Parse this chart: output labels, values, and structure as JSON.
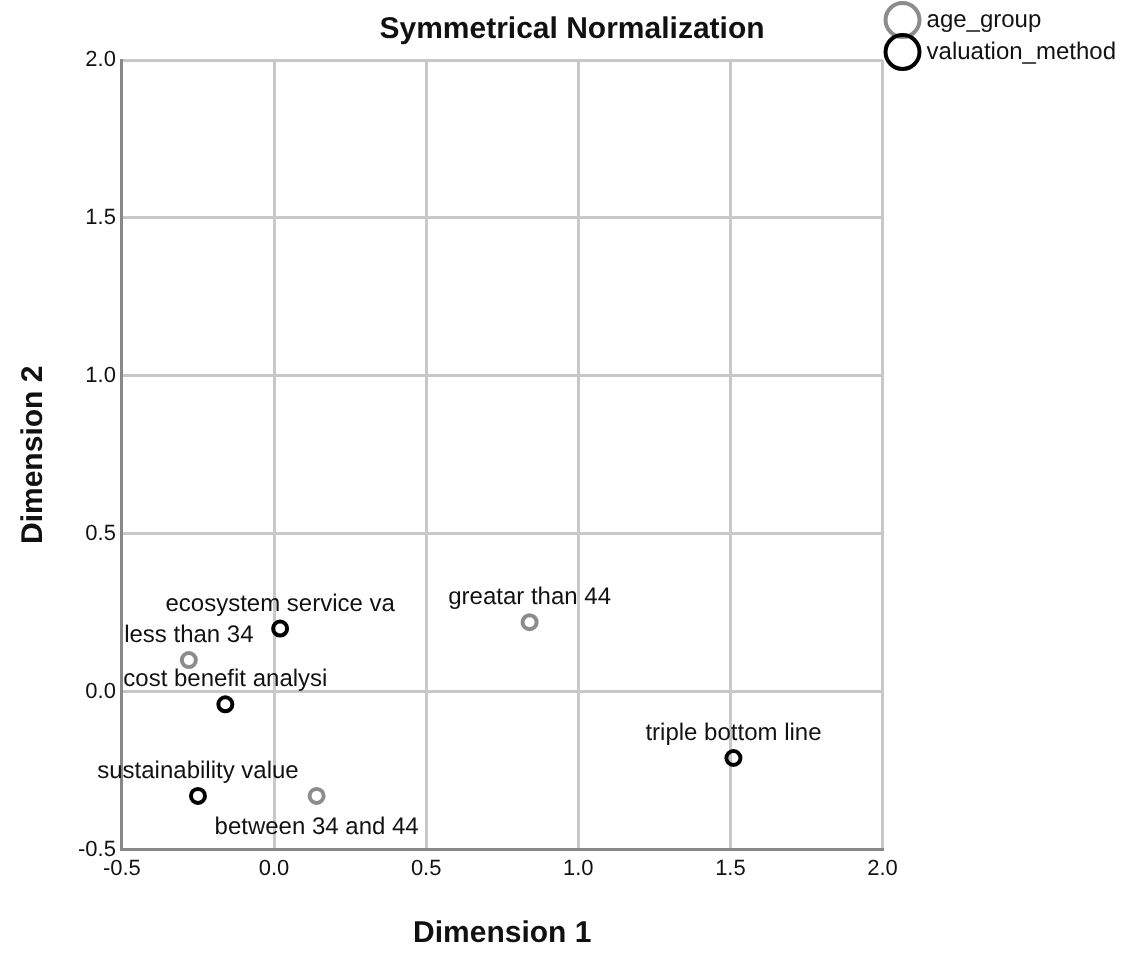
{
  "chart_data": {
    "type": "scatter",
    "title": "Symmetrical Normalization",
    "xlabel": "Dimension 1",
    "ylabel": "Dimension 2",
    "series": [
      {
        "name": "age_group",
        "color": "#8c8c8c",
        "x": [
          0.84,
          -0.28,
          0.14
        ],
        "values": [
          0.22,
          0.1,
          -0.33
        ]
      },
      {
        "name": "valuation_method",
        "color": "#000000",
        "x": [
          0.02,
          -0.16,
          1.51,
          -0.25
        ],
        "values": [
          0.2,
          -0.04,
          -0.21,
          -0.33
        ]
      }
    ],
    "annotations": [
      {
        "text": "ecosystem service va",
        "x": 0.02,
        "y": 0.2
      },
      {
        "text": "greatar than 44",
        "x": 0.84,
        "y": 0.22
      },
      {
        "text": "less than 34",
        "x": -0.28,
        "y": 0.1
      },
      {
        "text": "cost benefit analysi",
        "x": -0.16,
        "y": -0.04
      },
      {
        "text": "triple bottom line",
        "x": 1.51,
        "y": -0.21
      },
      {
        "text": "sustainability value",
        "x": -0.25,
        "y": -0.33
      },
      {
        "text": "between 34 and 44",
        "x": 0.14,
        "y": -0.33
      }
    ],
    "xlim": [
      -0.5,
      2.0
    ],
    "xticks": [
      -0.5,
      {
        "value": 0,
        "label": "0.0"
      },
      0.5,
      {
        "value": 1,
        "label": "1.0"
      },
      1.5,
      {
        "value": 2,
        "label": "2.0"
      }
    ],
    "ylim": [
      -0.5,
      2.0
    ],
    "yticks": [
      -0.5,
      {
        "value": 0,
        "label": "0.0"
      },
      0.5,
      {
        "value": 1,
        "label": "1.0"
      },
      1.5,
      {
        "value": 2,
        "label": "2.0"
      }
    ],
    "grid": true,
    "legend": "top right",
    "marker": "circle"
  }
}
